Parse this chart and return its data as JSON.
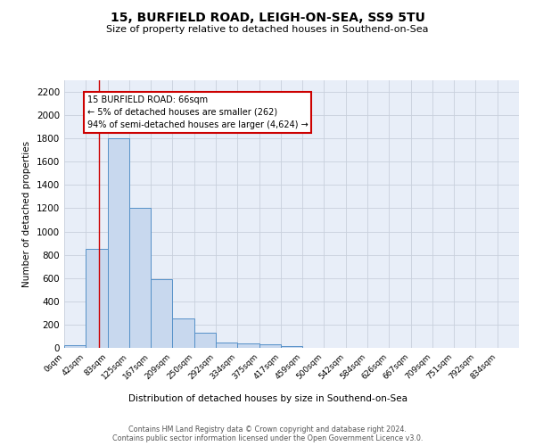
{
  "title": "15, BURFIELD ROAD, LEIGH-ON-SEA, SS9 5TU",
  "subtitle": "Size of property relative to detached houses in Southend-on-Sea",
  "xlabel": "Distribution of detached houses by size in Southend-on-Sea",
  "ylabel": "Number of detached properties",
  "footer_line1": "Contains HM Land Registry data © Crown copyright and database right 2024.",
  "footer_line2": "Contains public sector information licensed under the Open Government Licence v3.0.",
  "bin_labels": [
    "0sqm",
    "42sqm",
    "83sqm",
    "125sqm",
    "167sqm",
    "209sqm",
    "250sqm",
    "292sqm",
    "334sqm",
    "375sqm",
    "417sqm",
    "459sqm",
    "500sqm",
    "542sqm",
    "584sqm",
    "626sqm",
    "667sqm",
    "709sqm",
    "751sqm",
    "792sqm",
    "834sqm"
  ],
  "bar_heights": [
    25,
    850,
    1800,
    1200,
    590,
    255,
    130,
    45,
    40,
    30,
    18,
    0,
    0,
    0,
    0,
    0,
    0,
    0,
    0,
    0
  ],
  "bar_color": "#c8d8ee",
  "bar_edge_color": "#5590c8",
  "ylim": [
    0,
    2300
  ],
  "yticks": [
    0,
    200,
    400,
    600,
    800,
    1000,
    1200,
    1400,
    1600,
    1800,
    2000,
    2200
  ],
  "property_line_x": 66,
  "bin_width": 41.5,
  "annotation_text": "15 BURFIELD ROAD: 66sqm\n← 5% of detached houses are smaller (262)\n94% of semi-detached houses are larger (4,624) →",
  "annotation_box_color": "#ffffff",
  "annotation_box_edge_color": "#cc0000",
  "grid_color": "#c8d0dc",
  "background_color": "#e8eef8"
}
